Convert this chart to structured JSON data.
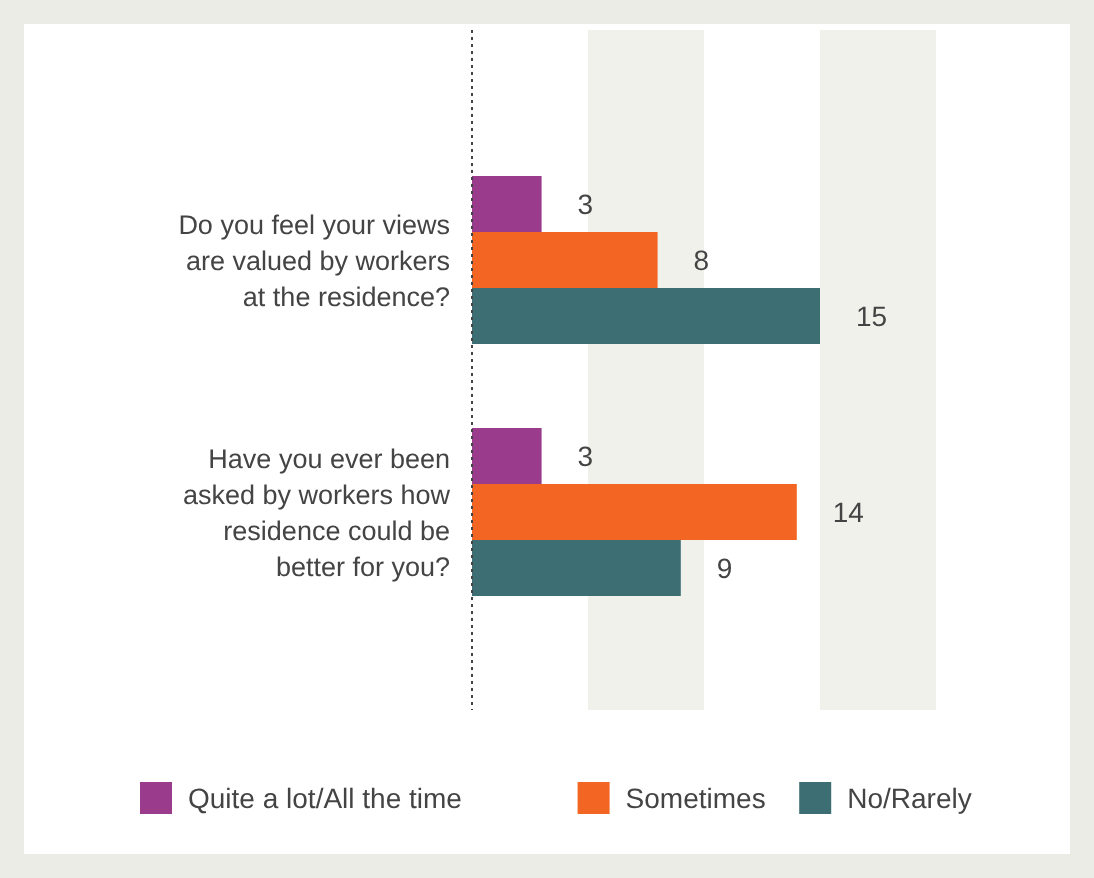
{
  "chart_data": {
    "type": "bar",
    "orientation": "horizontal",
    "categories": [
      "Do you feel your views are valued by workers at the residence?",
      "Have you ever been asked by workers how residence could be better for you?"
    ],
    "series": [
      {
        "name": "Quite a lot/All the time",
        "color": "#9b3b8c",
        "values": [
          3,
          3
        ]
      },
      {
        "name": "Sometimes",
        "color": "#f26522",
        "values": [
          8,
          14
        ]
      },
      {
        "name": "No/Rarely",
        "color": "#3d6e74",
        "values": [
          15,
          9
        ]
      }
    ],
    "bands": [
      {
        "axis": "x",
        "from": 5,
        "to": 10,
        "color": "#f1f1ec"
      },
      {
        "axis": "x",
        "from": 15,
        "to": 20,
        "color": "#f1f1ec"
      }
    ],
    "tick_labels": "y",
    "data_labels": true,
    "legend": "bottom"
  }
}
